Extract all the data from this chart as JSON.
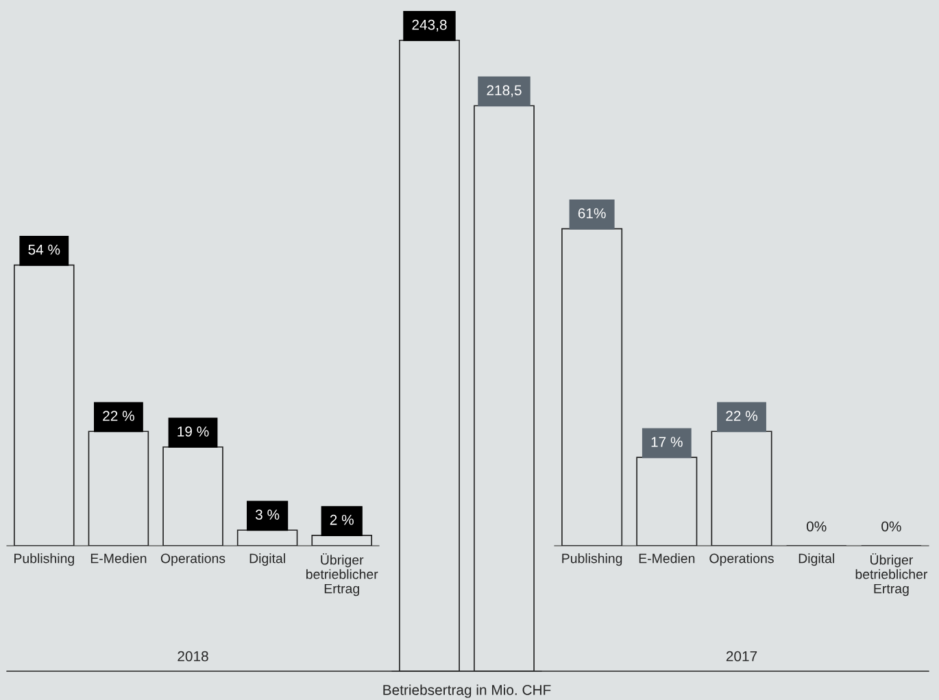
{
  "chart_data": [
    {
      "type": "bar",
      "xlabel": "2018",
      "categories": [
        "Publishing",
        "E-Medien",
        "Operations",
        "Digital",
        "Übriger betrieblicher Ertrag"
      ],
      "values": [
        54,
        22,
        19,
        3,
        2
      ],
      "color": "#dee2e3",
      "value_labels": [
        "54 %",
        "22 %",
        "19 %",
        "3 %",
        "2 %"
      ]
    },
    {
      "type": "bar",
      "xlabel": "Betriebsertrag in Mio. CHF",
      "categories": [
        null,
        null
      ],
      "values": [
        243.8,
        218.5
      ],
      "colors": [
        "#dee2e3",
        "#dee2e3"
      ],
      "value_labels": [
        "243,8",
        "218,5"
      ]
    },
    {
      "type": "bar",
      "xlabel": "2017",
      "categories": [
        "Publishing",
        "E-Medien",
        "Operations",
        "Digital",
        "Übriger betrieblicher Ertrag"
      ],
      "values": [
        61,
        17,
        22,
        0,
        0
      ],
      "color": "#dee2e3",
      "value_labels": [
        "61%",
        "17 %",
        "22 %",
        "0%",
        "0%"
      ]
    }
  ]
}
